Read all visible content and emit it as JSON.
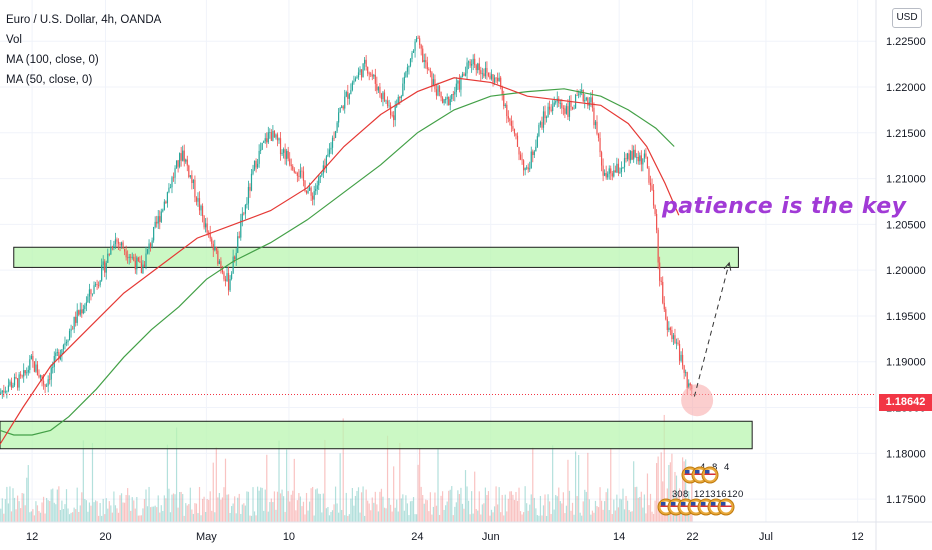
{
  "chart_data": {
    "type": "candlestick",
    "symbol_title": "Euro / U.S. Dollar, 4h, OANDA",
    "indicators": [
      "Vol",
      "MA (100, close, 0)",
      "MA (50, close, 0)"
    ],
    "currency": "USD",
    "last_price": "1.18642",
    "annotation": "patience is the key",
    "ylim": [
      1.1725,
      1.2295
    ],
    "y_ticks": [
      "1.22500",
      "1.22000",
      "1.21500",
      "1.21000",
      "1.20500",
      "1.20000",
      "1.19500",
      "1.19000",
      "1.18500",
      "1.18000",
      "1.17500"
    ],
    "y_tick_values": [
      1.225,
      1.22,
      1.215,
      1.21,
      1.205,
      1.2,
      1.195,
      1.19,
      1.185,
      1.18,
      1.175
    ],
    "x_ticks": [
      "12",
      "20",
      "May",
      "10",
      "24",
      "Jun",
      "14",
      "22",
      "Jul",
      "12"
    ],
    "x_tick_days": [
      12,
      20,
      31,
      40,
      54,
      62,
      76,
      84,
      92,
      102
    ],
    "xlim_days": [
      8.5,
      104
    ],
    "price_path": [
      [
        8.5,
        1.1865
      ],
      [
        9.5,
        1.1875
      ],
      [
        11,
        1.188
      ],
      [
        12,
        1.19
      ],
      [
        13.5,
        1.1875
      ],
      [
        15,
        1.191
      ],
      [
        17,
        1.195
      ],
      [
        18.5,
        1.1975
      ],
      [
        20,
        1.2005
      ],
      [
        21,
        1.2035
      ],
      [
        22.5,
        1.202
      ],
      [
        24,
        1.2
      ],
      [
        25.5,
        1.2045
      ],
      [
        27,
        1.209
      ],
      [
        28.5,
        1.213
      ],
      [
        30,
        1.208
      ],
      [
        31.5,
        1.203
      ],
      [
        32.5,
        1.201
      ],
      [
        33.5,
        1.1985
      ],
      [
        35,
        1.2055
      ],
      [
        36.5,
        1.212
      ],
      [
        38,
        1.215
      ],
      [
        39.5,
        1.213
      ],
      [
        41,
        1.211
      ],
      [
        42.5,
        1.208
      ],
      [
        44,
        1.211
      ],
      [
        45.5,
        1.217
      ],
      [
        47,
        1.2205
      ],
      [
        48.5,
        1.2225
      ],
      [
        50,
        1.2195
      ],
      [
        51.5,
        1.217
      ],
      [
        53,
        1.222
      ],
      [
        54,
        1.225
      ],
      [
        55.5,
        1.221
      ],
      [
        57,
        1.218
      ],
      [
        58.5,
        1.22
      ],
      [
        60,
        1.223
      ],
      [
        61.5,
        1.2215
      ],
      [
        63,
        1.2205
      ],
      [
        64.5,
        1.215
      ],
      [
        66,
        1.2105
      ],
      [
        67.5,
        1.216
      ],
      [
        69,
        1.2185
      ],
      [
        70.5,
        1.2175
      ],
      [
        72,
        1.219
      ],
      [
        73,
        1.2185
      ],
      [
        74.5,
        1.21
      ],
      [
        76,
        1.211
      ],
      [
        77.5,
        1.2125
      ],
      [
        79,
        1.212
      ],
      [
        80,
        1.206
      ],
      [
        80.5,
        1.199
      ],
      [
        81.5,
        1.193
      ],
      [
        82.5,
        1.1915
      ],
      [
        83.5,
        1.1875
      ],
      [
        84,
        1.1864
      ]
    ],
    "ma50_path": [
      [
        8.5,
        1.181
      ],
      [
        11,
        1.185
      ],
      [
        14,
        1.1895
      ],
      [
        18,
        1.1935
      ],
      [
        22,
        1.1975
      ],
      [
        26,
        1.2005
      ],
      [
        30,
        1.2035
      ],
      [
        34,
        1.205
      ],
      [
        38,
        1.2065
      ],
      [
        42,
        1.209
      ],
      [
        46,
        1.2135
      ],
      [
        50,
        1.217
      ],
      [
        54,
        1.2195
      ],
      [
        58,
        1.221
      ],
      [
        62,
        1.2205
      ],
      [
        66,
        1.219
      ],
      [
        70,
        1.2185
      ],
      [
        74,
        1.218
      ],
      [
        77,
        1.216
      ],
      [
        79,
        1.2135
      ],
      [
        81,
        1.2095
      ],
      [
        82.5,
        1.206
      ]
    ],
    "ma100_path": [
      [
        8.5,
        1.1825
      ],
      [
        10,
        1.182
      ],
      [
        12,
        1.182
      ],
      [
        14,
        1.1825
      ],
      [
        16,
        1.184
      ],
      [
        19,
        1.187
      ],
      [
        22,
        1.1905
      ],
      [
        25,
        1.1935
      ],
      [
        28,
        1.196
      ],
      [
        31,
        1.199
      ],
      [
        34,
        1.201
      ],
      [
        38,
        1.203
      ],
      [
        42,
        1.2055
      ],
      [
        46,
        1.2085
      ],
      [
        50,
        1.2115
      ],
      [
        54,
        1.215
      ],
      [
        58,
        1.2175
      ],
      [
        62,
        1.219
      ],
      [
        66,
        1.2195
      ],
      [
        70,
        1.2198
      ],
      [
        74,
        1.219
      ],
      [
        77,
        1.2175
      ],
      [
        80,
        1.2155
      ],
      [
        82,
        1.2135
      ]
    ],
    "zones": [
      {
        "x1": 10,
        "x2": 89,
        "y1": 1.2025,
        "y2": 1.2003
      },
      {
        "x1": 8.5,
        "x2": 90.5,
        "y1": 1.1835,
        "y2": 1.1805
      }
    ],
    "projection": {
      "x1": 84.2,
      "y1": 1.1862,
      "x2": 88,
      "y2": 1.2008
    },
    "highlight_circle": {
      "x": 84.5,
      "y": 1.1858
    },
    "event_rows": {
      "top": [
        "4",
        "8",
        "4"
      ],
      "bottom": [
        "30",
        "8",
        "12",
        "13",
        "16",
        "12",
        "0"
      ]
    },
    "colors": {
      "up": "#26a69a",
      "down": "#ef5350",
      "ma50": "#e53935",
      "ma100": "#43a047",
      "zone_fill": "#b9f6b0",
      "annotation": "#a13ad6"
    }
  }
}
